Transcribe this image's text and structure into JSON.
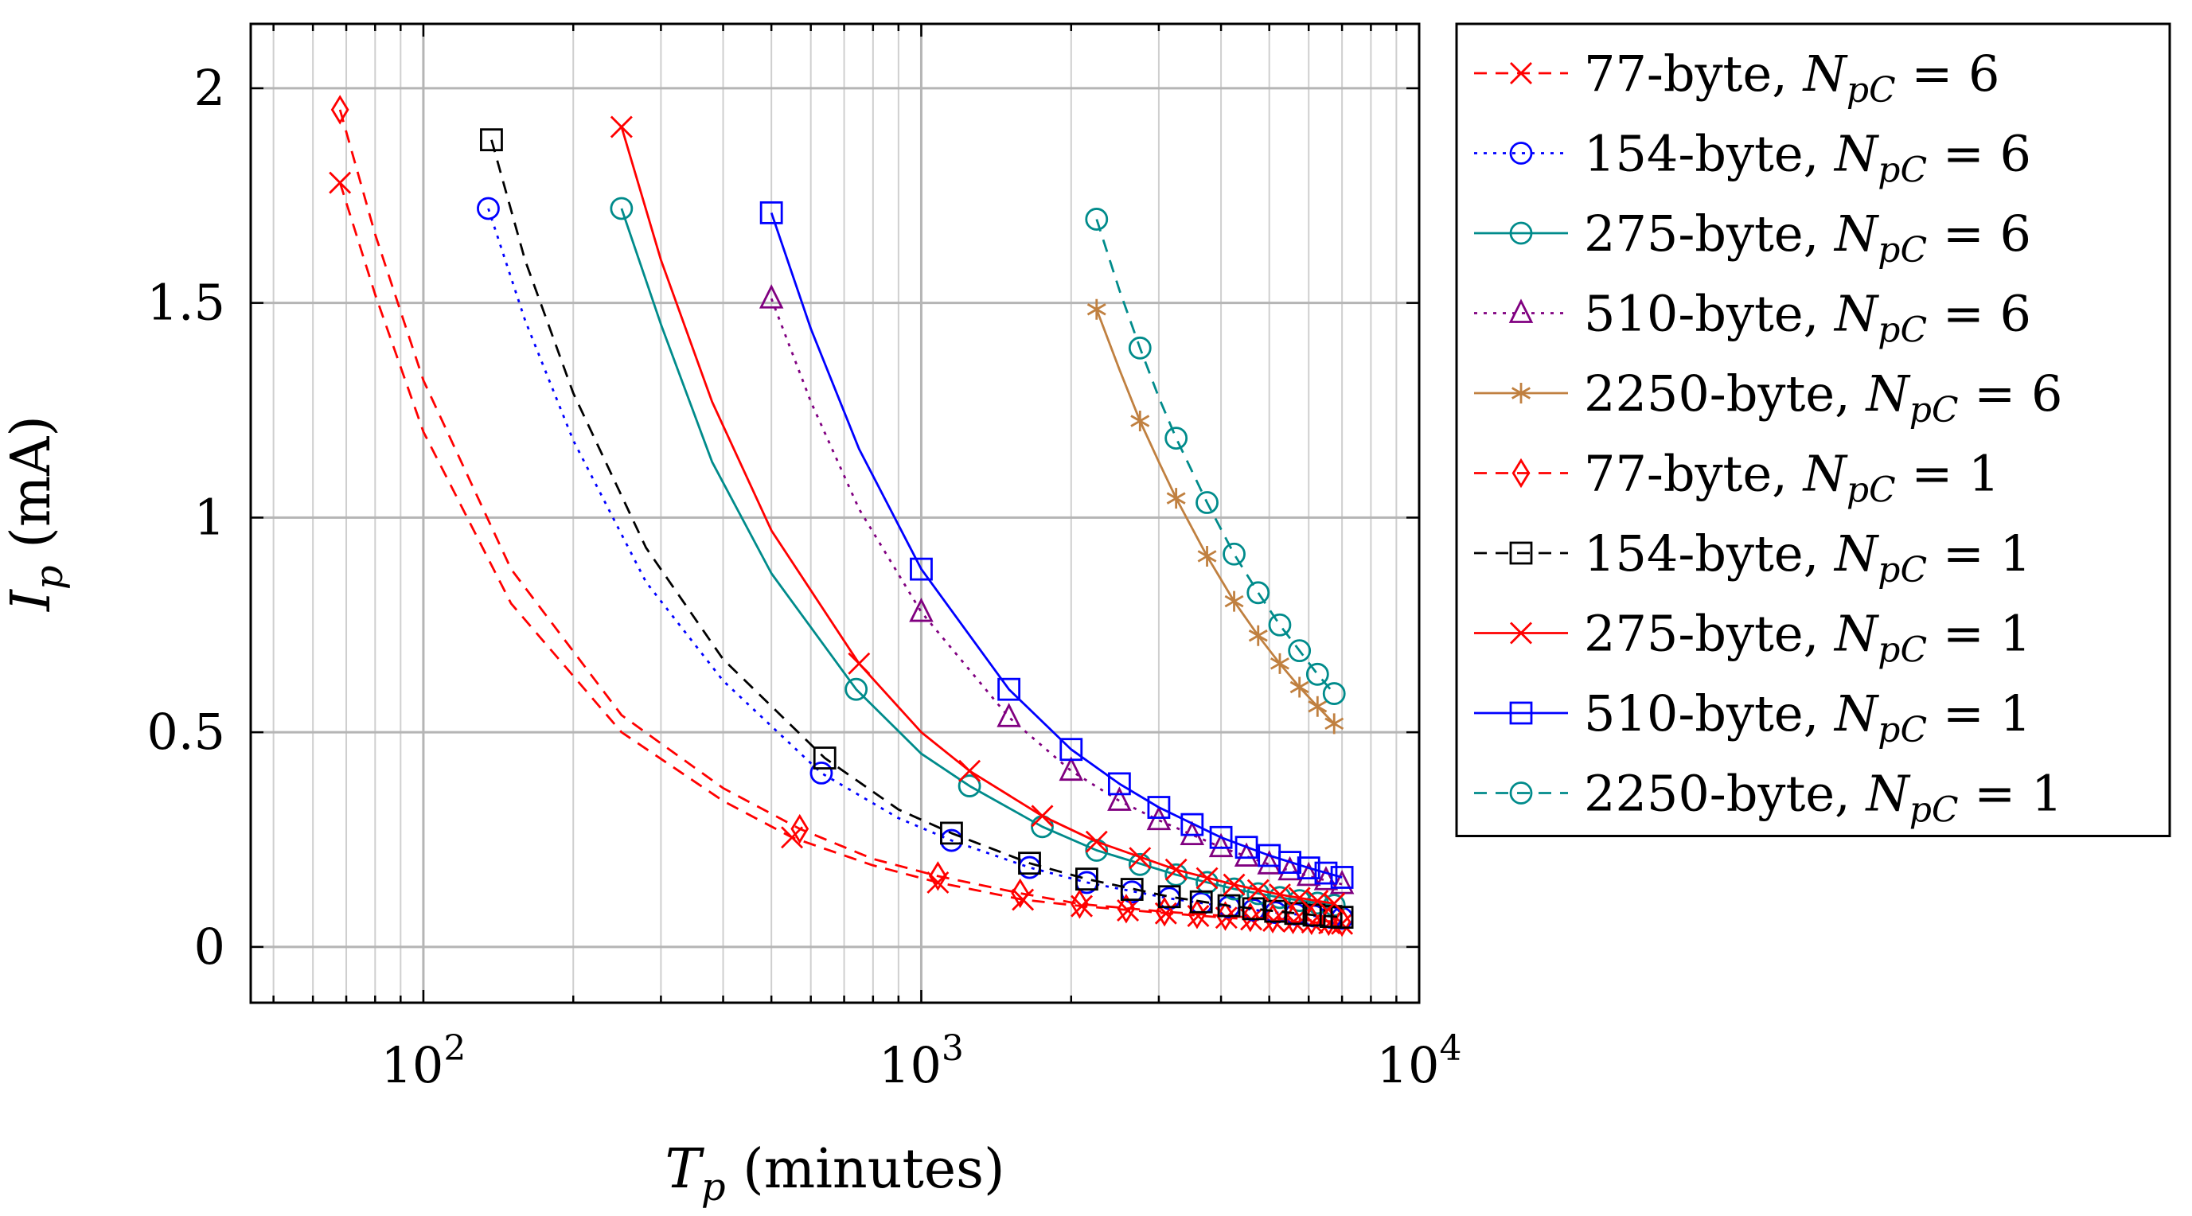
{
  "chart_data": {
    "type": "line",
    "title": "",
    "xlabel": {
      "var": "T",
      "sub": "p",
      "unit": " (minutes)"
    },
    "ylabel": {
      "var": "I",
      "sub": "p",
      "unit": " (mA)"
    },
    "xscale": "log",
    "xlim": [
      45,
      10000
    ],
    "ylim": [
      -0.13,
      2.15
    ],
    "grid": true,
    "legend_position": "outside-right",
    "x_ticks": [
      {
        "value": 100,
        "base": "10",
        "exp": "2"
      },
      {
        "value": 1000,
        "base": "10",
        "exp": "3"
      },
      {
        "value": 10000,
        "base": "10",
        "exp": "4"
      }
    ],
    "y_ticks": [
      {
        "value": 0,
        "label": "0"
      },
      {
        "value": 0.5,
        "label": "0.5"
      },
      {
        "value": 1,
        "label": "1"
      },
      {
        "value": 1.5,
        "label": "1.5"
      },
      {
        "value": 2,
        "label": "2"
      }
    ],
    "series": [
      {
        "name": "77-byte, N_pC = 6",
        "size_label": "77-byte, ",
        "npc": "6",
        "color": "#ff0000",
        "dash": "dashed",
        "marker": "x",
        "x": [
          68,
          550,
          1080,
          1600,
          2100,
          2600,
          3100,
          3600,
          4100,
          4600,
          5100,
          5600,
          6100,
          6600,
          7000
        ],
        "y": [
          1.78,
          0.255,
          0.15,
          0.11,
          0.095,
          0.085,
          0.078,
          0.072,
          0.068,
          0.064,
          0.061,
          0.059,
          0.057,
          0.055,
          0.054
        ],
        "curve_x": [
          68,
          80,
          100,
          150,
          250,
          400,
          550,
          800,
          1080,
          1600,
          2100,
          3000,
          4100,
          5100,
          6100,
          7000
        ],
        "curve_y": [
          1.78,
          1.52,
          1.2,
          0.8,
          0.5,
          0.34,
          0.255,
          0.19,
          0.15,
          0.11,
          0.095,
          0.08,
          0.068,
          0.061,
          0.057,
          0.054
        ]
      },
      {
        "name": "154-byte, N_pC = 6",
        "size_label": "154-byte, ",
        "npc": "6",
        "color": "#0000ff",
        "dash": "dotted",
        "marker": "circle",
        "x": [
          135,
          630,
          1150,
          1650,
          2150,
          2650,
          3150,
          3650,
          4150,
          4650,
          5150,
          5650,
          6150,
          6650,
          7000
        ],
        "y": [
          1.72,
          0.405,
          0.248,
          0.185,
          0.15,
          0.128,
          0.113,
          0.101,
          0.093,
          0.086,
          0.08,
          0.076,
          0.072,
          0.069,
          0.067
        ],
        "curve_x": [
          135,
          160,
          200,
          280,
          400,
          630,
          900,
          1150,
          1650,
          2150,
          3150,
          4150,
          5150,
          6150,
          7000
        ],
        "curve_y": [
          1.72,
          1.46,
          1.18,
          0.85,
          0.62,
          0.405,
          0.3,
          0.248,
          0.185,
          0.15,
          0.113,
          0.093,
          0.08,
          0.072,
          0.067
        ]
      },
      {
        "name": "275-byte, N_pC = 6",
        "size_label": "275-byte, ",
        "npc": "6",
        "color": "#008b8b",
        "dash": "solid",
        "marker": "circle",
        "x": [
          250,
          740,
          1250,
          1750,
          2250,
          2750,
          3250,
          3750,
          4250,
          4750,
          5250,
          5750,
          6250,
          6750
        ],
        "y": [
          1.72,
          0.6,
          0.375,
          0.28,
          0.225,
          0.192,
          0.168,
          0.15,
          0.135,
          0.124,
          0.115,
          0.108,
          0.102,
          0.097
        ],
        "curve_x": [
          250,
          300,
          380,
          500,
          740,
          1000,
          1250,
          1750,
          2250,
          3250,
          4250,
          5250,
          6250,
          6750
        ],
        "curve_y": [
          1.72,
          1.45,
          1.13,
          0.87,
          0.6,
          0.45,
          0.375,
          0.28,
          0.225,
          0.168,
          0.135,
          0.115,
          0.102,
          0.097
        ]
      },
      {
        "name": "510-byte, N_pC = 6",
        "size_label": "510-byte, ",
        "npc": "6",
        "color": "#800080",
        "dash": "dotted",
        "marker": "triangle",
        "x": [
          500,
          1000,
          1500,
          2000,
          2500,
          3000,
          3500,
          4000,
          4500,
          5000,
          5500,
          6000,
          6500,
          7000
        ],
        "y": [
          1.51,
          0.78,
          0.535,
          0.41,
          0.34,
          0.295,
          0.26,
          0.232,
          0.21,
          0.192,
          0.178,
          0.165,
          0.155,
          0.146
        ],
        "curve_x": [
          500,
          600,
          750,
          1000,
          1500,
          2000,
          2500,
          3000,
          4000,
          5000,
          6000,
          7000
        ],
        "curve_y": [
          1.51,
          1.27,
          1.02,
          0.78,
          0.535,
          0.41,
          0.34,
          0.295,
          0.232,
          0.192,
          0.165,
          0.146
        ]
      },
      {
        "name": "2250-byte, N_pC = 6",
        "size_label": "2250-byte, ",
        "npc": "6",
        "color": "#c08040",
        "dash": "solid",
        "marker": "star",
        "x": [
          2250,
          2750,
          3250,
          3750,
          4250,
          4750,
          5250,
          5750,
          6250,
          6750
        ],
        "y": [
          1.485,
          1.225,
          1.045,
          0.91,
          0.805,
          0.725,
          0.66,
          0.605,
          0.56,
          0.52
        ],
        "curve_x": [
          2250,
          2500,
          2750,
          3000,
          3250,
          3750,
          4250,
          4750,
          5250,
          5750,
          6250,
          6750
        ],
        "curve_y": [
          1.485,
          1.345,
          1.225,
          1.13,
          1.045,
          0.91,
          0.805,
          0.725,
          0.66,
          0.605,
          0.56,
          0.52
        ]
      },
      {
        "name": "77-byte, N_pC = 1",
        "size_label": "77-byte, ",
        "npc": "1",
        "color": "#ff0000",
        "dash": "dashed",
        "marker": "diamond",
        "x": [
          68,
          570,
          1080,
          1580,
          2080,
          2580,
          3080,
          3580,
          4080,
          4580,
          5080,
          5580,
          6080,
          6580,
          7000
        ],
        "y": [
          1.95,
          0.275,
          0.165,
          0.125,
          0.1,
          0.089,
          0.082,
          0.076,
          0.072,
          0.069,
          0.066,
          0.064,
          0.062,
          0.06,
          0.058
        ],
        "curve_x": [
          68,
          80,
          100,
          150,
          250,
          400,
          570,
          800,
          1080,
          1580,
          2080,
          3080,
          4080,
          5080,
          6080,
          7000
        ],
        "curve_y": [
          1.95,
          1.66,
          1.32,
          0.88,
          0.54,
          0.37,
          0.275,
          0.205,
          0.165,
          0.125,
          0.1,
          0.082,
          0.072,
          0.066,
          0.062,
          0.058
        ]
      },
      {
        "name": "154-byte, N_pC = 1",
        "size_label": "154-byte, ",
        "npc": "1",
        "color": "#000000",
        "dash": "dashed",
        "marker": "square",
        "x": [
          137,
          640,
          1150,
          1650,
          2150,
          2650,
          3150,
          3650,
          4150,
          4650,
          5150,
          5650,
          6150,
          6650,
          7000
        ],
        "y": [
          1.88,
          0.44,
          0.265,
          0.195,
          0.158,
          0.134,
          0.117,
          0.105,
          0.096,
          0.089,
          0.083,
          0.078,
          0.074,
          0.071,
          0.069
        ],
        "curve_x": [
          137,
          160,
          200,
          280,
          400,
          640,
          900,
          1150,
          1650,
          2150,
          3150,
          4150,
          5150,
          6150,
          7000
        ],
        "curve_y": [
          1.88,
          1.6,
          1.29,
          0.93,
          0.67,
          0.44,
          0.32,
          0.265,
          0.195,
          0.158,
          0.117,
          0.096,
          0.083,
          0.074,
          0.069
        ]
      },
      {
        "name": "275-byte, N_pC = 1",
        "size_label": "275-byte, ",
        "npc": "1",
        "color": "#ff0000",
        "dash": "solid",
        "marker": "x",
        "x": [
          250,
          750,
          1250,
          1750,
          2250,
          2750,
          3250,
          3750,
          4250,
          4750,
          5250,
          5750,
          6250,
          6750
        ],
        "y": [
          1.91,
          0.66,
          0.41,
          0.305,
          0.245,
          0.207,
          0.18,
          0.16,
          0.145,
          0.132,
          0.122,
          0.114,
          0.107,
          0.101
        ],
        "curve_x": [
          250,
          300,
          380,
          500,
          750,
          1000,
          1250,
          1750,
          2250,
          3250,
          4250,
          5250,
          6250,
          6750
        ],
        "curve_y": [
          1.91,
          1.6,
          1.27,
          0.97,
          0.66,
          0.5,
          0.41,
          0.305,
          0.245,
          0.18,
          0.145,
          0.122,
          0.107,
          0.101
        ]
      },
      {
        "name": "510-byte, N_pC = 1",
        "size_label": "510-byte, ",
        "npc": "1",
        "color": "#0000ff",
        "dash": "solid",
        "marker": "square",
        "x": [
          500,
          1000,
          1500,
          2000,
          2500,
          3000,
          3500,
          4000,
          4500,
          5000,
          5500,
          6000,
          6500,
          7000
        ],
        "y": [
          1.71,
          0.88,
          0.6,
          0.46,
          0.38,
          0.325,
          0.285,
          0.255,
          0.232,
          0.213,
          0.197,
          0.184,
          0.172,
          0.162
        ],
        "curve_x": [
          500,
          600,
          750,
          1000,
          1500,
          2000,
          2500,
          3000,
          4000,
          5000,
          6000,
          7000
        ],
        "curve_y": [
          1.71,
          1.44,
          1.16,
          0.88,
          0.6,
          0.46,
          0.38,
          0.325,
          0.255,
          0.213,
          0.184,
          0.162
        ]
      },
      {
        "name": "2250-byte, N_pC = 1",
        "size_label": "2250-byte, ",
        "npc": "1",
        "color": "#008b8b",
        "dash": "dashed",
        "marker": "circle",
        "x": [
          2250,
          2750,
          3250,
          3750,
          4250,
          4750,
          5250,
          5750,
          6250,
          6750
        ],
        "y": [
          1.695,
          1.395,
          1.185,
          1.035,
          0.915,
          0.825,
          0.75,
          0.69,
          0.635,
          0.59
        ],
        "curve_x": [
          2250,
          2500,
          2750,
          3000,
          3250,
          3750,
          4250,
          4750,
          5250,
          5750,
          6250,
          6750
        ],
        "curve_y": [
          1.695,
          1.53,
          1.395,
          1.28,
          1.185,
          1.035,
          0.915,
          0.825,
          0.75,
          0.69,
          0.635,
          0.59
        ]
      }
    ]
  }
}
